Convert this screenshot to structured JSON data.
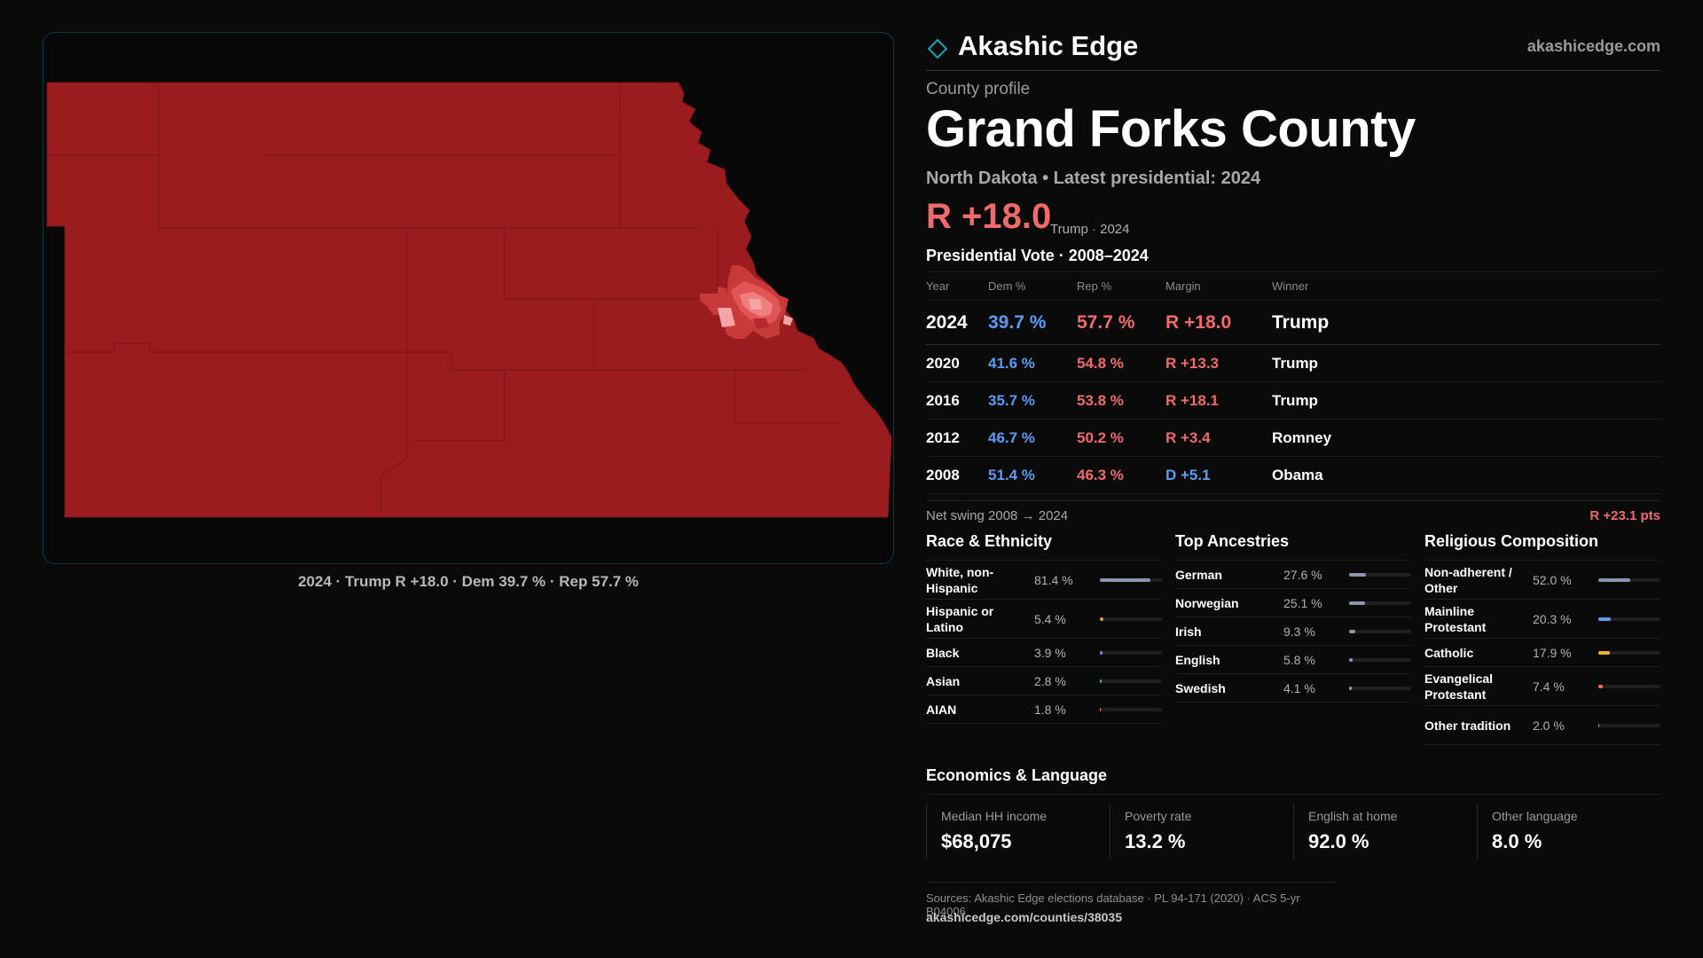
{
  "map": {
    "caption": "2024 · Trump R +18.0 · Dem 39.7 % · Rep 57.7 %",
    "fill_color": "#9b1c1f",
    "urban_colors": [
      "#c83a3a",
      "#e05555",
      "#ef7f7f",
      "#f5a5a5"
    ]
  },
  "brand": {
    "name": "Akashic Edge",
    "url": "akashicedge.com",
    "logo_icon": "diamond-icon",
    "accent": "#1aa3b4"
  },
  "profile": {
    "kicker": "County profile",
    "county_name": "Grand Forks County",
    "subtitle": "North Dakota • Latest presidential: 2024",
    "margin_big": "R +18.0",
    "margin_note": "Trump · 2024"
  },
  "vote": {
    "title": "Presidential Vote · 2008–2024",
    "headers": {
      "year": "Year",
      "dem": "Dem %",
      "rep": "Rep %",
      "margin": "Margin",
      "winner": "Winner"
    },
    "rows": [
      {
        "year": "2024",
        "dem": "39.7 %",
        "rep": "57.7 %",
        "margin": "R +18.0",
        "party": "r",
        "winner": "Trump"
      },
      {
        "year": "2020",
        "dem": "41.6 %",
        "rep": "54.8 %",
        "margin": "R +13.3",
        "party": "r",
        "winner": "Trump"
      },
      {
        "year": "2016",
        "dem": "35.7 %",
        "rep": "53.8 %",
        "margin": "R +18.1",
        "party": "r",
        "winner": "Trump"
      },
      {
        "year": "2012",
        "dem": "46.7 %",
        "rep": "50.2 %",
        "margin": "R +3.4",
        "party": "r",
        "winner": "Romney"
      },
      {
        "year": "2008",
        "dem": "51.4 %",
        "rep": "46.3 %",
        "margin": "D +5.1",
        "party": "d",
        "winner": "Obama"
      }
    ],
    "swing_label": "Net swing 2008 → 2024",
    "swing_value": "R +23.1 pts"
  },
  "race": {
    "title": "Race & Ethnicity",
    "rows": [
      {
        "label": "White, non-Hispanic",
        "value": "81.4 %",
        "pct": 81.4,
        "color": "#8c97ad"
      },
      {
        "label": "Hispanic or Latino",
        "value": "5.4 %",
        "pct": 5.4,
        "color": "#e69a2e"
      },
      {
        "label": "Black",
        "value": "3.9 %",
        "pct": 3.9,
        "color": "#8a7cf0"
      },
      {
        "label": "Asian",
        "value": "2.8 %",
        "pct": 2.8,
        "color": "#2fbf8f"
      },
      {
        "label": "AIAN",
        "value": "1.8 %",
        "pct": 1.8,
        "color": "#e07a3a"
      }
    ]
  },
  "ancestry": {
    "title": "Top Ancestries",
    "rows": [
      {
        "label": "German",
        "value": "27.6 %",
        "pct": 27.6,
        "color": "#8c97ad"
      },
      {
        "label": "Norwegian",
        "value": "25.1 %",
        "pct": 25.1,
        "color": "#8c97ad"
      },
      {
        "label": "Irish",
        "value": "9.3 %",
        "pct": 9.3,
        "color": "#8c97ad"
      },
      {
        "label": "English",
        "value": "5.8 %",
        "pct": 5.8,
        "color": "#8c97ad"
      },
      {
        "label": "Swedish",
        "value": "4.1 %",
        "pct": 4.1,
        "color": "#8c97ad"
      }
    ]
  },
  "religion": {
    "title": "Religious Composition",
    "rows": [
      {
        "label": "Non-adherent / Other",
        "value": "52.0 %",
        "pct": 52.0,
        "color": "#8c97ad"
      },
      {
        "label": "Mainline Protestant",
        "value": "20.3 %",
        "pct": 20.3,
        "color": "#5a9cf5"
      },
      {
        "label": "Catholic",
        "value": "17.9 %",
        "pct": 17.9,
        "color": "#e6b52e"
      },
      {
        "label": "Evangelical Protestant",
        "value": "7.4 %",
        "pct": 7.4,
        "color": "#f06a6a"
      },
      {
        "label": "Other tradition",
        "value": "2.0 %",
        "pct": 2.0,
        "color": "#8c97ad"
      }
    ]
  },
  "econ": {
    "title": "Economics & Language",
    "cells": [
      {
        "label": "Median HH income",
        "value": "$68,075"
      },
      {
        "label": "Poverty rate",
        "value": "13.2 %"
      },
      {
        "label": "English at home",
        "value": "92.0 %"
      },
      {
        "label": "Other language",
        "value": "8.0 %"
      }
    ]
  },
  "sources": {
    "text": "Sources: Akashic Edge elections database · PL 94-171 (2020) · ACS 5-yr B04006",
    "url": "akashicedge.com/counties/38035"
  }
}
